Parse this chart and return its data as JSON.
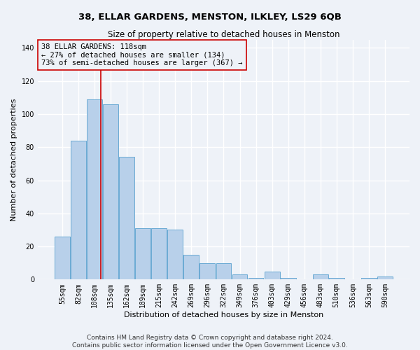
{
  "title1": "38, ELLAR GARDENS, MENSTON, ILKLEY, LS29 6QB",
  "title2": "Size of property relative to detached houses in Menston",
  "xlabel": "Distribution of detached houses by size in Menston",
  "ylabel": "Number of detached properties",
  "footer1": "Contains HM Land Registry data © Crown copyright and database right 2024.",
  "footer2": "Contains public sector information licensed under the Open Government Licence v3.0.",
  "bin_labels": [
    "55sqm",
    "82sqm",
    "108sqm",
    "135sqm",
    "162sqm",
    "189sqm",
    "215sqm",
    "242sqm",
    "269sqm",
    "296sqm",
    "322sqm",
    "349sqm",
    "376sqm",
    "403sqm",
    "429sqm",
    "456sqm",
    "483sqm",
    "510sqm",
    "536sqm",
    "563sqm",
    "590sqm"
  ],
  "bar_values": [
    26,
    84,
    109,
    106,
    74,
    31,
    31,
    30,
    15,
    10,
    10,
    3,
    1,
    5,
    1,
    0,
    3,
    1,
    0,
    1,
    2
  ],
  "bar_color": "#b8d0ea",
  "bar_edge_color": "#6aaad4",
  "red_line_bin_index": 2.37,
  "red_line_color": "#cc0000",
  "annotation_box_color": "#cc0000",
  "annotation_text1": "38 ELLAR GARDENS: 118sqm",
  "annotation_text2": "← 27% of detached houses are smaller (134)",
  "annotation_text3": "73% of semi-detached houses are larger (367) →",
  "ylim": [
    0,
    145
  ],
  "yticks": [
    0,
    20,
    40,
    60,
    80,
    100,
    120,
    140
  ],
  "background_color": "#eef2f8",
  "grid_color": "#ffffff",
  "title1_fontsize": 9.5,
  "title2_fontsize": 8.5,
  "xlabel_fontsize": 8,
  "ylabel_fontsize": 8,
  "tick_fontsize": 7,
  "footer_fontsize": 6.5,
  "annot_fontsize": 7.5
}
